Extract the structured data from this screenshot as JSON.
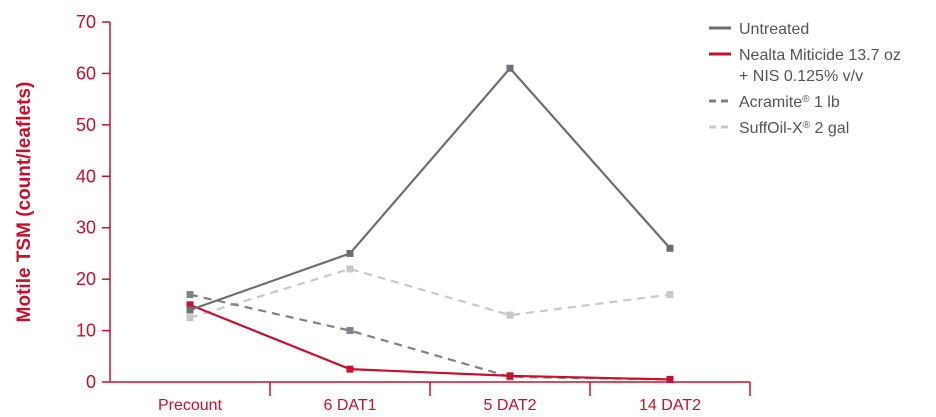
{
  "chart_data": {
    "type": "line",
    "ylabel": "Motile TSM (count/leaflets)",
    "xlabel": "",
    "categories": [
      "Precount",
      "6 DAT1",
      "5 DAT2",
      "14 DAT2"
    ],
    "ylim": [
      0,
      70
    ],
    "yticks": [
      "0",
      "10",
      "20",
      "30",
      "40",
      "50",
      "60",
      "70"
    ],
    "grid": false,
    "legend_position": "top-right",
    "series": [
      {
        "name": "Untreated",
        "values": [
          14,
          25,
          61,
          26
        ],
        "color": "#6d6e71",
        "dash": "solid"
      },
      {
        "name": "Nealta Miticide 13.7 oz",
        "name_line2": "+ NIS 0.125% v/v",
        "values": [
          15,
          2.5,
          1.2,
          0.5
        ],
        "color": "#c8102e",
        "dash": "solid"
      },
      {
        "name": "Acramite",
        "name_sup": "®",
        "name_rest": " 1 lb",
        "values": [
          17,
          10,
          1,
          0.5
        ],
        "color": "#808285",
        "dash": "dashed"
      },
      {
        "name": "SuffOil-X",
        "name_sup": "®",
        "name_rest": " 2 gal",
        "values": [
          12.5,
          22,
          13,
          17
        ],
        "color": "#c7c8ca",
        "dash": "dashed"
      }
    ]
  }
}
